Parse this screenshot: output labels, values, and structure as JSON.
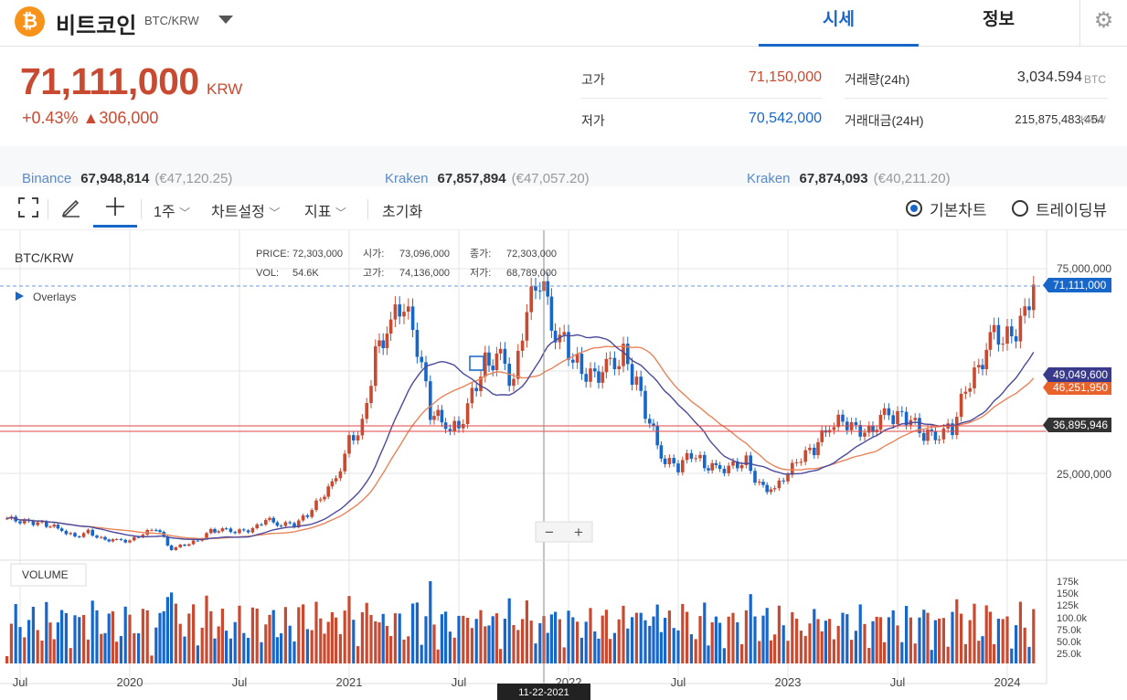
{
  "header": {
    "logo_glyph": "₿",
    "coin_name": "비트코인",
    "pair": "BTC/KRW",
    "tabs": [
      "시세",
      "정보"
    ],
    "active_tab": "시세",
    "settings_icon": "gear-icon"
  },
  "ticker": {
    "price": "71,111,000",
    "unit": "KRW",
    "change": "+0.43% ▲306,000"
  },
  "stats": {
    "high_label": "고가",
    "high_value": "71,150,000",
    "low_label": "저가",
    "low_value": "70,542,000",
    "volume_label": "거래량(24h)",
    "volume_value": "3,034.594",
    "volume_unit": "BTC",
    "amount_label": "거래대금(24H)",
    "amount_value": "215,875,483,454",
    "amount_unit": "KRW"
  },
  "exchanges": [
    {
      "name": "Binance",
      "value": "67,948,814",
      "eur": "(€47,120.25)"
    },
    {
      "name": "Kraken",
      "value": "67,857,894",
      "eur": "(€47,057.20)"
    },
    {
      "name": "Kraken",
      "value": "67,874,093",
      "eur": "(€40,211.20)"
    }
  ],
  "toolbar": {
    "interval": "1주",
    "chart_settings": "차트설정",
    "indicators": "지표",
    "reset": "초기화",
    "chart_basic": "기본차트",
    "chart_tradingview": "트레이딩뷰",
    "selected_chart": "기본차트"
  },
  "colors": {
    "up": "#c84a31",
    "down": "#1766c9",
    "ma_short": "#4a4a9c",
    "ma_long": "#e8845a",
    "hline": "#e04646"
  },
  "chart_data": {
    "type": "candlestick",
    "symbol": "BTC/KRW",
    "interval": "1주",
    "overlays_label": "Overlays",
    "volume_label": "VOLUME",
    "crosshair": {
      "date": "11-22-2021",
      "price_label": "PRICE:",
      "price": "72,303,000",
      "vol_label": "VOL:",
      "vol": "54.6K",
      "open_label": "시가:",
      "open": "73,096,000",
      "high_label": "고가:",
      "high": "74,136,000",
      "close_label": "종가:",
      "close": "72,303,000",
      "low_label": "저가:",
      "low": "68,789,000"
    },
    "price_tags": [
      {
        "value": "71,111,000",
        "color": "#1766c9"
      },
      {
        "value": "49,049,600",
        "color": "#3a3a8c"
      },
      {
        "value": "46,251,950",
        "color": "#e8622a"
      },
      {
        "value": "36,895,946",
        "color": "#333333"
      }
    ],
    "y_ticks": [
      "75,000,000",
      "25,000,000"
    ],
    "vol_ticks": [
      "175k",
      "150k",
      "125k",
      "100.0k",
      "75.0k",
      "50.0k",
      "25.0k"
    ],
    "x_ticks": [
      "Jul",
      "2020",
      "Jul",
      "2021",
      "Jul",
      "2022",
      "Jul",
      "2023",
      "Jul",
      "2024"
    ],
    "x_tick_dates": [
      2019.5,
      2020.0,
      2020.5,
      2021.0,
      2021.5,
      2022.0,
      2022.5,
      2023.0,
      2023.5,
      2024.0
    ],
    "current_price": 71111000,
    "support_line": 36895946,
    "ma_short_last": 49049600,
    "ma_long_last": 46251950,
    "close_series": [
      [
        2019.44,
        14.0
      ],
      [
        2019.5,
        13.2
      ],
      [
        2019.56,
        13.0
      ],
      [
        2019.62,
        12.5
      ],
      [
        2019.69,
        11.2
      ],
      [
        2019.75,
        9.5
      ],
      [
        2019.81,
        10.8
      ],
      [
        2019.87,
        9.0
      ],
      [
        2019.94,
        8.6
      ],
      [
        2020.0,
        8.5
      ],
      [
        2020.06,
        10.2
      ],
      [
        2020.12,
        11.6
      ],
      [
        2020.19,
        6.6
      ],
      [
        2020.25,
        7.6
      ],
      [
        2020.31,
        8.6
      ],
      [
        2020.37,
        11.1
      ],
      [
        2020.44,
        11.0
      ],
      [
        2020.5,
        10.8
      ],
      [
        2020.56,
        11.3
      ],
      [
        2020.62,
        13.7
      ],
      [
        2020.69,
        12.6
      ],
      [
        2020.75,
        12.5
      ],
      [
        2020.81,
        15.0
      ],
      [
        2020.87,
        19.0
      ],
      [
        2020.94,
        23.5
      ],
      [
        2021.0,
        33.0
      ],
      [
        2021.06,
        36.5
      ],
      [
        2021.12,
        54.0
      ],
      [
        2021.19,
        62.0
      ],
      [
        2021.25,
        66.0
      ],
      [
        2021.31,
        56.0
      ],
      [
        2021.37,
        40.0
      ],
      [
        2021.44,
        37.0
      ],
      [
        2021.5,
        36.0
      ],
      [
        2021.56,
        44.5
      ],
      [
        2021.62,
        52.0
      ],
      [
        2021.69,
        53.0
      ],
      [
        2021.75,
        47.0
      ],
      [
        2021.81,
        65.0
      ],
      [
        2021.87,
        72.3
      ],
      [
        2021.94,
        60.0
      ],
      [
        2022.0,
        55.0
      ],
      [
        2022.06,
        50.0
      ],
      [
        2022.12,
        49.0
      ],
      [
        2022.19,
        51.0
      ],
      [
        2022.25,
        54.0
      ],
      [
        2022.31,
        47.0
      ],
      [
        2022.37,
        37.0
      ],
      [
        2022.44,
        28.0
      ],
      [
        2022.5,
        26.5
      ],
      [
        2022.56,
        30.0
      ],
      [
        2022.62,
        27.0
      ],
      [
        2022.69,
        26.0
      ],
      [
        2022.75,
        27.0
      ],
      [
        2022.81,
        28.0
      ],
      [
        2022.87,
        22.0
      ],
      [
        2022.94,
        21.0
      ],
      [
        2023.0,
        25.0
      ],
      [
        2023.06,
        29.0
      ],
      [
        2023.12,
        31.0
      ],
      [
        2023.19,
        37.0
      ],
      [
        2023.25,
        38.0
      ],
      [
        2023.31,
        36.0
      ],
      [
        2023.37,
        35.0
      ],
      [
        2023.44,
        39.0
      ],
      [
        2023.5,
        39.0
      ],
      [
        2023.56,
        38.0
      ],
      [
        2023.62,
        34.0
      ],
      [
        2023.69,
        35.0
      ],
      [
        2023.75,
        36.0
      ],
      [
        2023.81,
        46.0
      ],
      [
        2023.87,
        51.0
      ],
      [
        2023.94,
        59.0
      ],
      [
        2024.0,
        58.0
      ],
      [
        2024.06,
        61.0
      ],
      [
        2024.12,
        71.1
      ]
    ]
  }
}
